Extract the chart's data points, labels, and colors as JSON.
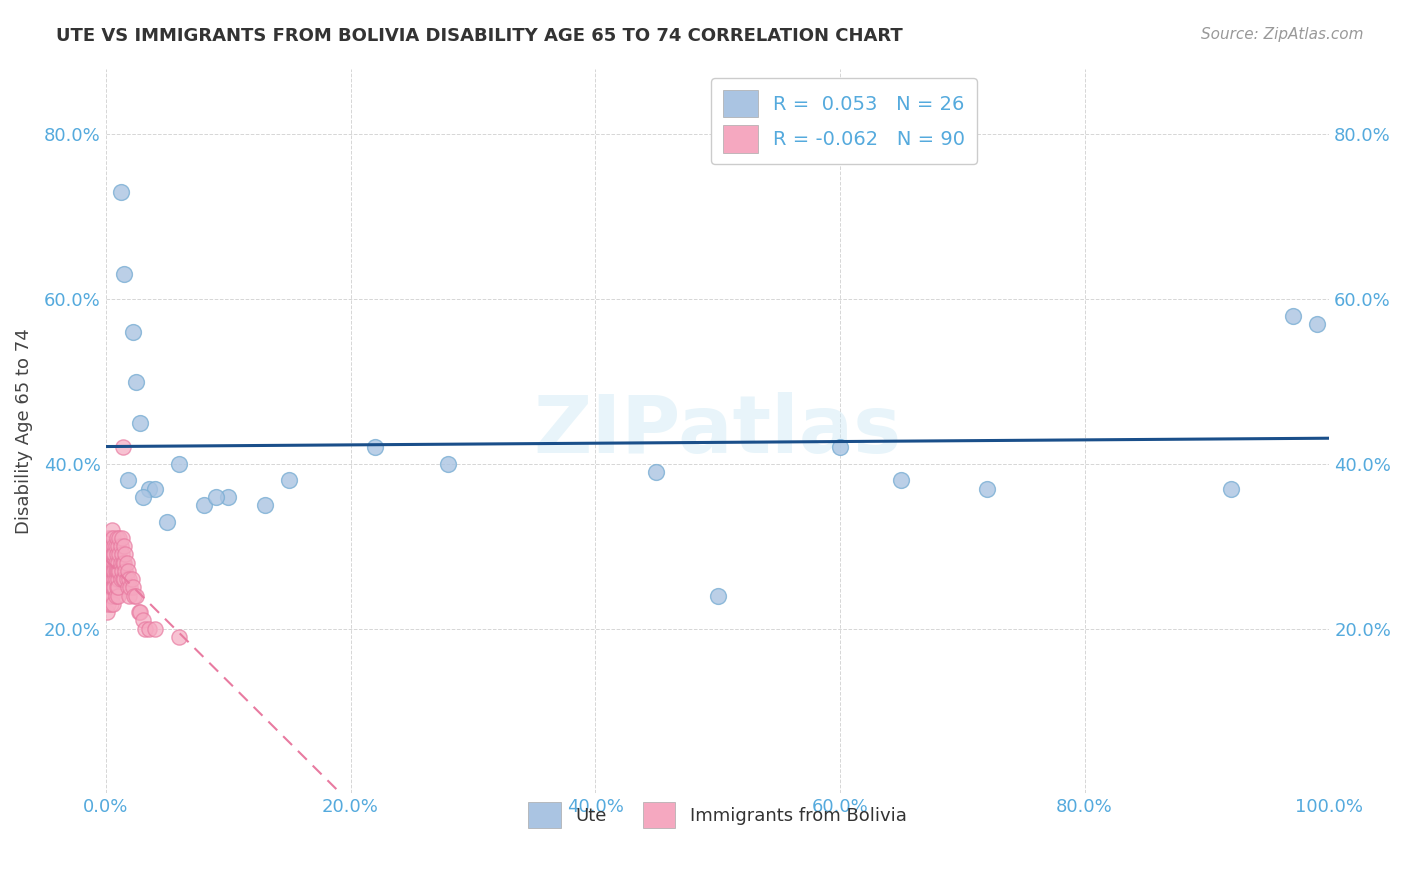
{
  "title": "UTE VS IMMIGRANTS FROM BOLIVIA DISABILITY AGE 65 TO 74 CORRELATION CHART",
  "source": "Source: ZipAtlas.com",
  "xlabel": "",
  "ylabel": "Disability Age 65 to 74",
  "watermark": "ZIPatlas",
  "legend_ute": "Ute",
  "legend_bolivia": "Immigrants from Bolivia",
  "r_ute": 0.053,
  "n_ute": 26,
  "r_bolivia": -0.062,
  "n_bolivia": 90,
  "ute_color": "#aac4e2",
  "ute_edge_color": "#7aaed4",
  "bolivia_color": "#f5a8c0",
  "bolivia_edge_color": "#e87aa0",
  "ute_line_color": "#1a4f8a",
  "bolivia_line_color": "#e87aa0",
  "xlim": [
    0.0,
    1.0
  ],
  "ylim": [
    0.0,
    0.88
  ],
  "xticks": [
    0.0,
    0.2,
    0.4,
    0.6,
    0.8,
    1.0
  ],
  "yticks": [
    0.2,
    0.4,
    0.6,
    0.8
  ],
  "ute_x": [
    0.012,
    0.015,
    0.022,
    0.025,
    0.028,
    0.035,
    0.04,
    0.05,
    0.08,
    0.1,
    0.13,
    0.15,
    0.22,
    0.28,
    0.5,
    0.65,
    0.72,
    0.92,
    0.97,
    0.99,
    0.018,
    0.03,
    0.06,
    0.09,
    0.45,
    0.6
  ],
  "ute_y": [
    0.73,
    0.63,
    0.56,
    0.5,
    0.45,
    0.37,
    0.37,
    0.33,
    0.35,
    0.36,
    0.35,
    0.38,
    0.42,
    0.4,
    0.24,
    0.38,
    0.37,
    0.37,
    0.58,
    0.57,
    0.38,
    0.36,
    0.4,
    0.36,
    0.39,
    0.42
  ],
  "bolivia_x": [
    0.001,
    0.001,
    0.001,
    0.001,
    0.001,
    0.002,
    0.002,
    0.002,
    0.002,
    0.002,
    0.002,
    0.003,
    0.003,
    0.003,
    0.003,
    0.003,
    0.003,
    0.004,
    0.004,
    0.004,
    0.004,
    0.004,
    0.005,
    0.005,
    0.005,
    0.005,
    0.005,
    0.005,
    0.005,
    0.006,
    0.006,
    0.006,
    0.006,
    0.006,
    0.007,
    0.007,
    0.007,
    0.007,
    0.007,
    0.007,
    0.008,
    0.008,
    0.008,
    0.008,
    0.008,
    0.009,
    0.009,
    0.009,
    0.009,
    0.01,
    0.01,
    0.01,
    0.01,
    0.01,
    0.01,
    0.011,
    0.011,
    0.011,
    0.012,
    0.012,
    0.012,
    0.013,
    0.013,
    0.013,
    0.014,
    0.014,
    0.014,
    0.015,
    0.015,
    0.015,
    0.016,
    0.016,
    0.017,
    0.017,
    0.018,
    0.018,
    0.019,
    0.019,
    0.02,
    0.021,
    0.022,
    0.023,
    0.025,
    0.027,
    0.028,
    0.03,
    0.032,
    0.035,
    0.04,
    0.06
  ],
  "bolivia_y": [
    0.28,
    0.26,
    0.3,
    0.24,
    0.22,
    0.29,
    0.27,
    0.31,
    0.25,
    0.23,
    0.26,
    0.28,
    0.26,
    0.3,
    0.24,
    0.27,
    0.25,
    0.29,
    0.27,
    0.31,
    0.25,
    0.23,
    0.28,
    0.26,
    0.3,
    0.24,
    0.27,
    0.25,
    0.32,
    0.29,
    0.27,
    0.31,
    0.25,
    0.23,
    0.3,
    0.28,
    0.26,
    0.29,
    0.27,
    0.25,
    0.28,
    0.26,
    0.3,
    0.24,
    0.27,
    0.29,
    0.27,
    0.31,
    0.25,
    0.3,
    0.28,
    0.26,
    0.24,
    0.27,
    0.25,
    0.29,
    0.27,
    0.31,
    0.28,
    0.26,
    0.3,
    0.29,
    0.27,
    0.31,
    0.28,
    0.26,
    0.42,
    0.3,
    0.28,
    0.26,
    0.29,
    0.27,
    0.28,
    0.26,
    0.27,
    0.25,
    0.26,
    0.24,
    0.25,
    0.26,
    0.25,
    0.24,
    0.24,
    0.22,
    0.22,
    0.21,
    0.2,
    0.2,
    0.2,
    0.19
  ],
  "background_grid_color": "#cccccc",
  "title_fontsize": 13,
  "axis_label_fontsize": 13,
  "tick_fontsize": 13,
  "tick_color": "#55aadd",
  "legend_text_color": "#55aadd"
}
